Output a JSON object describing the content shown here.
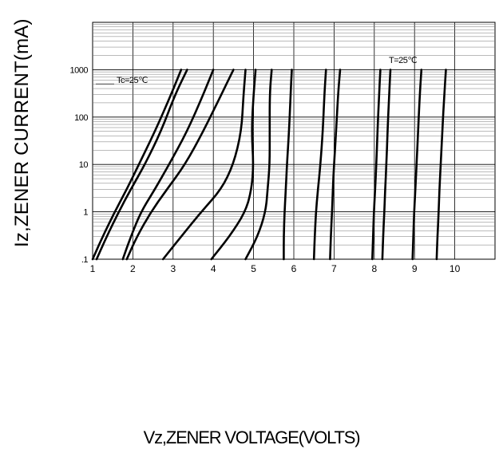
{
  "chart_data": {
    "type": "line",
    "title": "",
    "xlabel": "Vz,ZENER VOLTAGE(VOLTS)",
    "ylabel": "Iz,ZENER CURRENT(mA)",
    "x_scale": "linear",
    "y_scale": "log",
    "xlim": [
      1,
      11
    ],
    "ylim": [
      0.1,
      10000
    ],
    "x_ticks": [
      "1",
      "2",
      "3",
      "4",
      "5",
      "6",
      "7",
      "8",
      "9",
      "10"
    ],
    "y_ticks": [
      ".1",
      "1",
      "10",
      "100",
      "1000"
    ],
    "grid": true,
    "annotations": [
      "Tc=25℃",
      "T=25℃"
    ],
    "series": [
      {
        "x": [
          1.0,
          1.25,
          1.55,
          1.85,
          2.15,
          2.55,
          2.95,
          3.2
        ],
        "y": [
          0.1,
          0.3,
          1,
          3,
          10,
          50,
          300,
          1000
        ]
      },
      {
        "x": [
          1.1,
          1.35,
          1.65,
          1.95,
          2.3,
          2.7,
          3.05,
          3.35
        ],
        "y": [
          0.1,
          0.3,
          1,
          3,
          10,
          50,
          300,
          1000
        ]
      },
      {
        "x": [
          1.75,
          1.95,
          2.2,
          2.55,
          2.9,
          3.35,
          3.75,
          4.0
        ],
        "y": [
          0.1,
          0.3,
          1,
          3,
          10,
          50,
          300,
          1000
        ]
      },
      {
        "x": [
          1.85,
          2.1,
          2.45,
          2.85,
          3.3,
          3.75,
          4.2,
          4.5
        ],
        "y": [
          0.1,
          0.3,
          1,
          3,
          10,
          50,
          300,
          1000
        ]
      },
      {
        "x": [
          2.75,
          3.2,
          3.7,
          4.2,
          4.5,
          4.7,
          4.75,
          4.8
        ],
        "y": [
          0.1,
          0.3,
          1,
          3,
          10,
          50,
          300,
          1000
        ]
      },
      {
        "x": [
          3.95,
          4.4,
          4.8,
          4.95,
          5.0,
          4.95,
          5.0,
          5.05
        ],
        "y": [
          0.1,
          0.3,
          1,
          3,
          10,
          50,
          300,
          1000
        ]
      },
      {
        "x": [
          4.8,
          5.1,
          5.3,
          5.35,
          5.4,
          5.4,
          5.4,
          5.45
        ],
        "y": [
          0.1,
          0.3,
          1,
          3,
          10,
          50,
          300,
          1000
        ]
      },
      {
        "x": [
          5.75,
          5.75,
          5.77,
          5.8,
          5.83,
          5.88,
          5.92,
          5.95
        ],
        "y": [
          0.1,
          0.3,
          1,
          3,
          10,
          50,
          300,
          1000
        ]
      },
      {
        "x": [
          6.5,
          6.52,
          6.55,
          6.6,
          6.66,
          6.72,
          6.76,
          6.8
        ],
        "y": [
          0.1,
          0.3,
          1,
          3,
          10,
          50,
          300,
          1000
        ]
      },
      {
        "x": [
          6.9,
          6.92,
          6.95,
          6.97,
          7.0,
          7.05,
          7.1,
          7.15
        ],
        "y": [
          0.1,
          0.3,
          1,
          3,
          10,
          50,
          300,
          1000
        ]
      },
      {
        "x": [
          7.95,
          7.97,
          7.99,
          8.02,
          8.05,
          8.08,
          8.12,
          8.15
        ],
        "y": [
          0.1,
          0.3,
          1,
          3,
          10,
          50,
          300,
          1000
        ]
      },
      {
        "x": [
          8.2,
          8.22,
          8.25,
          8.27,
          8.3,
          8.33,
          8.37,
          8.4
        ],
        "y": [
          0.1,
          0.3,
          1,
          3,
          10,
          50,
          300,
          1000
        ]
      },
      {
        "x": [
          8.95,
          8.97,
          8.99,
          9.02,
          9.05,
          9.09,
          9.13,
          9.17
        ],
        "y": [
          0.1,
          0.3,
          1,
          3,
          10,
          50,
          300,
          1000
        ]
      },
      {
        "x": [
          9.55,
          9.57,
          9.6,
          9.62,
          9.65,
          9.69,
          9.74,
          9.78
        ],
        "y": [
          0.1,
          0.3,
          1,
          3,
          10,
          50,
          300,
          1000
        ]
      }
    ]
  }
}
